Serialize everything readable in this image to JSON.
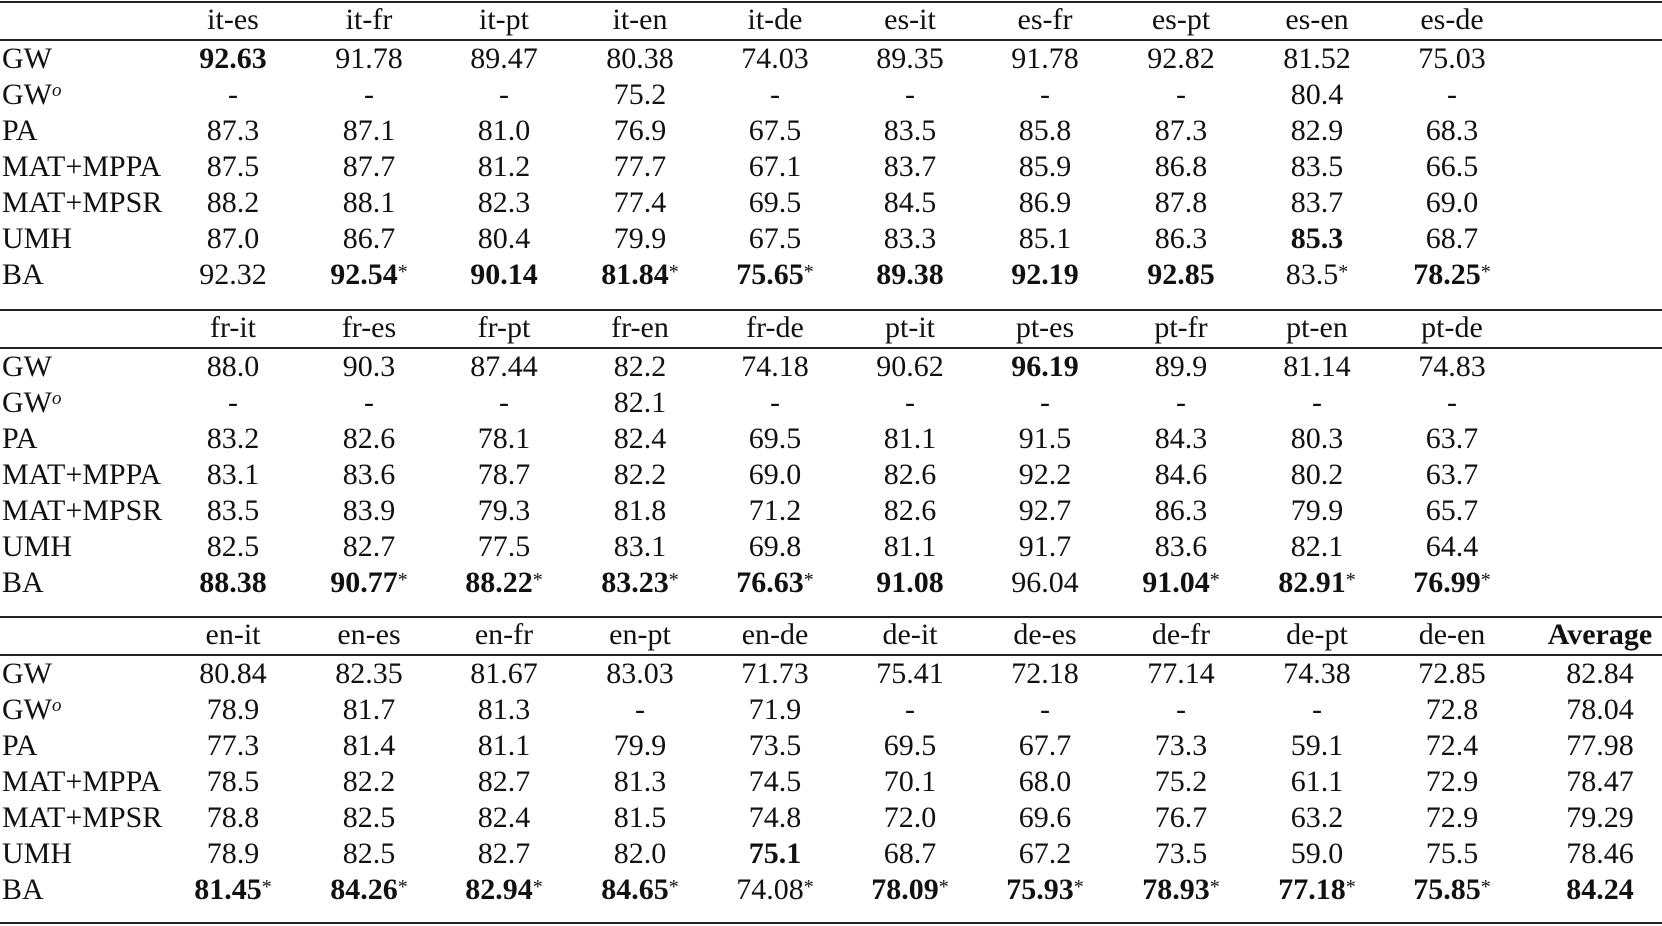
{
  "table": {
    "methods": [
      {
        "name": "GW",
        "sup": ""
      },
      {
        "name": "GW",
        "sup": "o"
      },
      {
        "name": "PA",
        "sup": ""
      },
      {
        "name": "MAT+MPPA",
        "sup": ""
      },
      {
        "name": "MAT+MPSR",
        "sup": ""
      },
      {
        "name": "UMH",
        "sup": ""
      },
      {
        "name": "BA",
        "sup": ""
      }
    ],
    "star_symbol": "*",
    "sections": [
      {
        "headers": [
          "it-es",
          "it-fr",
          "it-pt",
          "it-en",
          "it-de",
          "es-it",
          "es-fr",
          "es-pt",
          "es-en",
          "es-de"
        ],
        "rows": [
          [
            {
              "v": "92.63",
              "b": true
            },
            {
              "v": "91.78"
            },
            {
              "v": "89.47"
            },
            {
              "v": "80.38"
            },
            {
              "v": "74.03"
            },
            {
              "v": "89.35"
            },
            {
              "v": "91.78"
            },
            {
              "v": "92.82"
            },
            {
              "v": "81.52"
            },
            {
              "v": "75.03"
            }
          ],
          [
            {
              "v": "-"
            },
            {
              "v": "-"
            },
            {
              "v": "-"
            },
            {
              "v": "75.2"
            },
            {
              "v": "-"
            },
            {
              "v": "-"
            },
            {
              "v": "-"
            },
            {
              "v": "-"
            },
            {
              "v": "80.4"
            },
            {
              "v": "-"
            }
          ],
          [
            {
              "v": "87.3"
            },
            {
              "v": "87.1"
            },
            {
              "v": "81.0"
            },
            {
              "v": "76.9"
            },
            {
              "v": "67.5"
            },
            {
              "v": "83.5"
            },
            {
              "v": "85.8"
            },
            {
              "v": "87.3"
            },
            {
              "v": "82.9"
            },
            {
              "v": "68.3"
            }
          ],
          [
            {
              "v": "87.5"
            },
            {
              "v": "87.7"
            },
            {
              "v": "81.2"
            },
            {
              "v": "77.7"
            },
            {
              "v": "67.1"
            },
            {
              "v": "83.7"
            },
            {
              "v": "85.9"
            },
            {
              "v": "86.8"
            },
            {
              "v": "83.5"
            },
            {
              "v": "66.5"
            }
          ],
          [
            {
              "v": "88.2"
            },
            {
              "v": "88.1"
            },
            {
              "v": "82.3"
            },
            {
              "v": "77.4"
            },
            {
              "v": "69.5"
            },
            {
              "v": "84.5"
            },
            {
              "v": "86.9"
            },
            {
              "v": "87.8"
            },
            {
              "v": "83.7"
            },
            {
              "v": "69.0"
            }
          ],
          [
            {
              "v": "87.0"
            },
            {
              "v": "86.7"
            },
            {
              "v": "80.4"
            },
            {
              "v": "79.9"
            },
            {
              "v": "67.5"
            },
            {
              "v": "83.3"
            },
            {
              "v": "85.1"
            },
            {
              "v": "86.3"
            },
            {
              "v": "85.3",
              "b": true
            },
            {
              "v": "68.7"
            }
          ],
          [
            {
              "v": "92.32"
            },
            {
              "v": "92.54",
              "b": true,
              "s": true
            },
            {
              "v": "90.14",
              "b": true
            },
            {
              "v": "81.84",
              "b": true,
              "s": true
            },
            {
              "v": "75.65",
              "b": true,
              "s": true
            },
            {
              "v": "89.38",
              "b": true
            },
            {
              "v": "92.19",
              "b": true
            },
            {
              "v": "92.85",
              "b": true
            },
            {
              "v": "83.5",
              "s": true
            },
            {
              "v": "78.25",
              "b": true,
              "s": true
            }
          ]
        ]
      },
      {
        "headers": [
          "fr-it",
          "fr-es",
          "fr-pt",
          "fr-en",
          "fr-de",
          "pt-it",
          "pt-es",
          "pt-fr",
          "pt-en",
          "pt-de"
        ],
        "rows": [
          [
            {
              "v": "88.0"
            },
            {
              "v": "90.3"
            },
            {
              "v": "87.44"
            },
            {
              "v": "82.2"
            },
            {
              "v": "74.18"
            },
            {
              "v": "90.62"
            },
            {
              "v": "96.19",
              "b": true
            },
            {
              "v": "89.9"
            },
            {
              "v": "81.14"
            },
            {
              "v": "74.83"
            }
          ],
          [
            {
              "v": "-"
            },
            {
              "v": "-"
            },
            {
              "v": "-"
            },
            {
              "v": "82.1"
            },
            {
              "v": "-"
            },
            {
              "v": "-"
            },
            {
              "v": "-"
            },
            {
              "v": "-"
            },
            {
              "v": "-"
            },
            {
              "v": "-"
            }
          ],
          [
            {
              "v": "83.2"
            },
            {
              "v": "82.6"
            },
            {
              "v": "78.1"
            },
            {
              "v": "82.4"
            },
            {
              "v": "69.5"
            },
            {
              "v": "81.1"
            },
            {
              "v": "91.5"
            },
            {
              "v": "84.3"
            },
            {
              "v": "80.3"
            },
            {
              "v": "63.7"
            }
          ],
          [
            {
              "v": "83.1"
            },
            {
              "v": "83.6"
            },
            {
              "v": "78.7"
            },
            {
              "v": "82.2"
            },
            {
              "v": "69.0"
            },
            {
              "v": "82.6"
            },
            {
              "v": "92.2"
            },
            {
              "v": "84.6"
            },
            {
              "v": "80.2"
            },
            {
              "v": "63.7"
            }
          ],
          [
            {
              "v": "83.5"
            },
            {
              "v": "83.9"
            },
            {
              "v": "79.3"
            },
            {
              "v": "81.8"
            },
            {
              "v": "71.2"
            },
            {
              "v": "82.6"
            },
            {
              "v": "92.7"
            },
            {
              "v": "86.3"
            },
            {
              "v": "79.9"
            },
            {
              "v": "65.7"
            }
          ],
          [
            {
              "v": "82.5"
            },
            {
              "v": "82.7"
            },
            {
              "v": "77.5"
            },
            {
              "v": "83.1"
            },
            {
              "v": "69.8"
            },
            {
              "v": "81.1"
            },
            {
              "v": "91.7"
            },
            {
              "v": "83.6"
            },
            {
              "v": "82.1"
            },
            {
              "v": "64.4"
            }
          ],
          [
            {
              "v": "88.38",
              "b": true
            },
            {
              "v": "90.77",
              "b": true,
              "s": true
            },
            {
              "v": "88.22",
              "b": true,
              "s": true
            },
            {
              "v": "83.23",
              "b": true,
              "s": true
            },
            {
              "v": "76.63",
              "b": true,
              "s": true
            },
            {
              "v": "91.08",
              "b": true
            },
            {
              "v": "96.04"
            },
            {
              "v": "91.04",
              "b": true,
              "s": true
            },
            {
              "v": "82.91",
              "b": true,
              "s": true
            },
            {
              "v": "76.99",
              "b": true,
              "s": true
            }
          ]
        ]
      },
      {
        "headers": [
          "en-it",
          "en-es",
          "en-fr",
          "en-pt",
          "en-de",
          "de-it",
          "de-es",
          "de-fr",
          "de-pt",
          "de-en",
          "Average"
        ],
        "rows": [
          [
            {
              "v": "80.84"
            },
            {
              "v": "82.35"
            },
            {
              "v": "81.67"
            },
            {
              "v": "83.03"
            },
            {
              "v": "71.73"
            },
            {
              "v": "75.41"
            },
            {
              "v": "72.18"
            },
            {
              "v": "77.14"
            },
            {
              "v": "74.38"
            },
            {
              "v": "72.85"
            },
            {
              "v": "82.84"
            }
          ],
          [
            {
              "v": "78.9"
            },
            {
              "v": "81.7"
            },
            {
              "v": "81.3"
            },
            {
              "v": "-"
            },
            {
              "v": "71.9"
            },
            {
              "v": "-"
            },
            {
              "v": "-"
            },
            {
              "v": "-"
            },
            {
              "v": "-"
            },
            {
              "v": "72.8"
            },
            {
              "v": "78.04"
            }
          ],
          [
            {
              "v": "77.3"
            },
            {
              "v": "81.4"
            },
            {
              "v": "81.1"
            },
            {
              "v": "79.9"
            },
            {
              "v": "73.5"
            },
            {
              "v": "69.5"
            },
            {
              "v": "67.7"
            },
            {
              "v": "73.3"
            },
            {
              "v": "59.1"
            },
            {
              "v": "72.4"
            },
            {
              "v": "77.98"
            }
          ],
          [
            {
              "v": "78.5"
            },
            {
              "v": "82.2"
            },
            {
              "v": "82.7"
            },
            {
              "v": "81.3"
            },
            {
              "v": "74.5"
            },
            {
              "v": "70.1"
            },
            {
              "v": "68.0"
            },
            {
              "v": "75.2"
            },
            {
              "v": "61.1"
            },
            {
              "v": "72.9"
            },
            {
              "v": "78.47"
            }
          ],
          [
            {
              "v": "78.8"
            },
            {
              "v": "82.5"
            },
            {
              "v": "82.4"
            },
            {
              "v": "81.5"
            },
            {
              "v": "74.8"
            },
            {
              "v": "72.0"
            },
            {
              "v": "69.6"
            },
            {
              "v": "76.7"
            },
            {
              "v": "63.2"
            },
            {
              "v": "72.9"
            },
            {
              "v": "79.29"
            }
          ],
          [
            {
              "v": "78.9"
            },
            {
              "v": "82.5"
            },
            {
              "v": "82.7"
            },
            {
              "v": "82.0"
            },
            {
              "v": "75.1",
              "b": true
            },
            {
              "v": "68.7"
            },
            {
              "v": "67.2"
            },
            {
              "v": "73.5"
            },
            {
              "v": "59.0"
            },
            {
              "v": "75.5"
            },
            {
              "v": "78.46"
            }
          ],
          [
            {
              "v": "81.45",
              "b": true,
              "s": true
            },
            {
              "v": "84.26",
              "b": true,
              "s": true
            },
            {
              "v": "82.94",
              "b": true,
              "s": true
            },
            {
              "v": "84.65",
              "b": true,
              "s": true
            },
            {
              "v": "74.08",
              "s": true
            },
            {
              "v": "78.09",
              "b": true,
              "s": true
            },
            {
              "v": "75.93",
              "b": true,
              "s": true
            },
            {
              "v": "78.93",
              "b": true,
              "s": true
            },
            {
              "v": "77.18",
              "b": true,
              "s": true
            },
            {
              "v": "75.85",
              "b": true,
              "s": true
            },
            {
              "v": "84.24",
              "b": true
            }
          ]
        ]
      }
    ],
    "bold_headers": [
      "Average"
    ]
  }
}
